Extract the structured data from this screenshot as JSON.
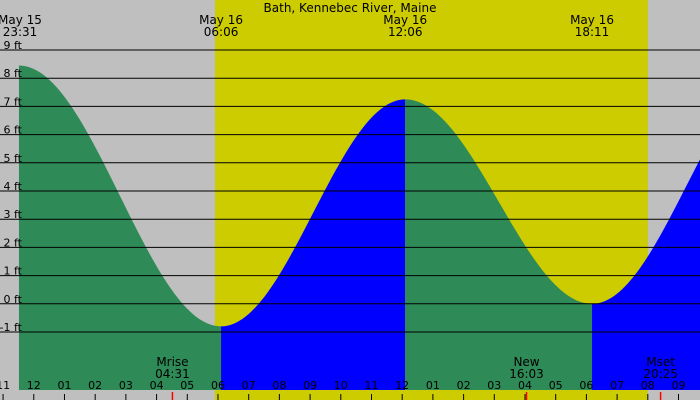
{
  "chart_data": {
    "type": "area",
    "title": "Bath, Kennebec River, Maine",
    "xlabel": "",
    "ylabel": "",
    "unit": "ft",
    "ylim": [
      -2,
      9
    ],
    "y_ticks": [
      9,
      8,
      7,
      6,
      5,
      4,
      3,
      2,
      1,
      0,
      -1
    ],
    "y_tick_labels": [
      "9 ft",
      "8 ft",
      "7 ft",
      "6 ft",
      "5 ft",
      "4 ft",
      "3 ft",
      "2 ft",
      "1 ft",
      "0 ft",
      "-1 ft"
    ],
    "grid": true,
    "x_range_hours": [
      10.9,
      33.7
    ],
    "hour_ticks": [
      {
        "h": 11,
        "label": "11"
      },
      {
        "h": 12,
        "label": "12"
      },
      {
        "h": 13,
        "label": "01"
      },
      {
        "h": 14,
        "label": "02"
      },
      {
        "h": 15,
        "label": "03"
      },
      {
        "h": 16,
        "label": "04"
      },
      {
        "h": 17,
        "label": "05"
      },
      {
        "h": 18,
        "label": "06"
      },
      {
        "h": 19,
        "label": "07"
      },
      {
        "h": 20,
        "label": "08"
      },
      {
        "h": 21,
        "label": "09"
      },
      {
        "h": 22,
        "label": "10"
      },
      {
        "h": 23,
        "label": "11"
      },
      {
        "h": 24,
        "label": "12"
      },
      {
        "h": 25,
        "label": "01"
      },
      {
        "h": 26,
        "label": "02"
      },
      {
        "h": 27,
        "label": "03"
      },
      {
        "h": 28,
        "label": "04"
      },
      {
        "h": 29,
        "label": "05"
      },
      {
        "h": 30,
        "label": "06"
      },
      {
        "h": 31,
        "label": "07"
      },
      {
        "h": 32,
        "label": "08"
      },
      {
        "h": 33,
        "label": "09"
      }
    ],
    "tide_extremes": [
      {
        "h": 11.517,
        "height": 8.45,
        "date_label": "May 15",
        "time_label": "23:31"
      },
      {
        "h": 18.1,
        "height": -0.8,
        "date_label": "May 16",
        "time_label": "06:06"
      },
      {
        "h": 24.1,
        "height": 7.25,
        "date_label": "May 16",
        "time_label": "12:06"
      },
      {
        "h": 30.183,
        "height": 0.0,
        "date_label": "May 16",
        "time_label": "18:11"
      },
      {
        "h": 36.3,
        "height": 8.3,
        "date_label": "",
        "time_label": ""
      }
    ],
    "daylight": {
      "start_h": 17.9,
      "end_h": 32.0
    },
    "moon_events": [
      {
        "label": "Mrise",
        "time": "04:31",
        "h": 16.517
      },
      {
        "label": "New",
        "time": "16:03",
        "h": 28.05
      },
      {
        "label": "Mset",
        "time": "20:25",
        "h": 32.417
      }
    ],
    "colors": {
      "night": "#bfbfbf",
      "day": "#cccc00",
      "ebb": "#2e8b57",
      "flood": "#0000ff",
      "grid": "#000000",
      "marker": "#ff0000"
    }
  }
}
